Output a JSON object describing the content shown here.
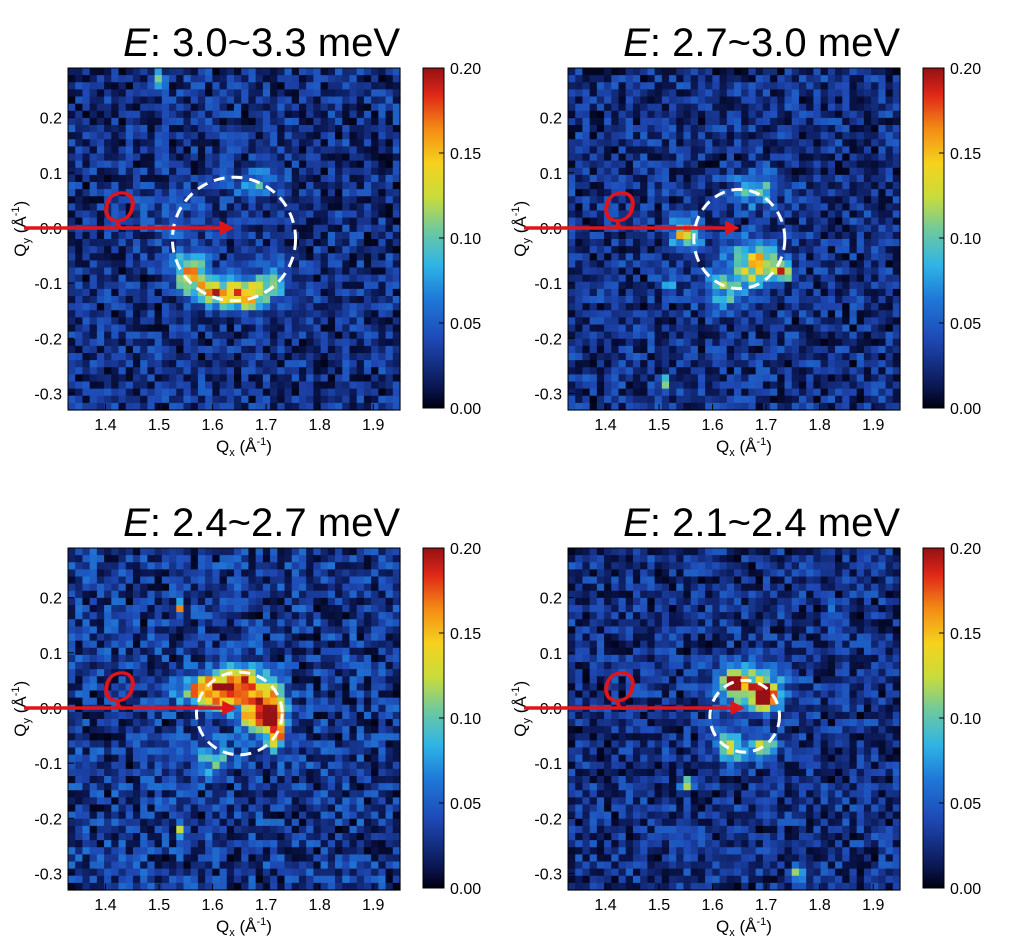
{
  "chart_data": [
    {
      "type": "heatmap",
      "title_prefix": "E",
      "title_value": ": 3.0~3.3 meV",
      "xlabel": "Qx (Å-1)",
      "ylabel": "Qy (Å-1)",
      "xlim": [
        1.33,
        1.95
      ],
      "ylim": [
        -0.33,
        0.29
      ],
      "xticks": [
        1.4,
        1.5,
        1.6,
        1.7,
        1.8,
        1.9
      ],
      "xtick_labels": [
        "1.4",
        "1.5",
        "1.6",
        "1.7",
        "1.8",
        "1.9"
      ],
      "yticks": [
        0.2,
        0.1,
        0.0,
        -0.1,
        -0.2,
        -0.3
      ],
      "ytick_labels": [
        "0.2",
        "0.1",
        "0.0",
        "-0.1",
        "-0.2",
        "-0.3"
      ],
      "colorbar": {
        "min": 0.0,
        "max": 0.2,
        "ticks": [
          "0.20",
          "0.15",
          "0.10",
          "0.05",
          "0.00"
        ]
      },
      "ring": {
        "center": [
          1.64,
          -0.02
        ],
        "radius_x": 0.115,
        "radius_y": 0.112
      },
      "q_arrow": {
        "label": "Q",
        "from_x": 1.33,
        "to_x": 1.635,
        "y": 0.0
      },
      "blobs": [
        {
          "x": 1.56,
          "y": -0.08,
          "amp": 0.1,
          "sx": 0.022,
          "sy": 0.025
        },
        {
          "x": 1.6,
          "y": -0.115,
          "amp": 0.11,
          "sx": 0.028,
          "sy": 0.018
        },
        {
          "x": 1.66,
          "y": -0.12,
          "amp": 0.12,
          "sx": 0.028,
          "sy": 0.018
        },
        {
          "x": 1.715,
          "y": -0.095,
          "amp": 0.08,
          "sx": 0.02,
          "sy": 0.02
        },
        {
          "x": 1.68,
          "y": 0.08,
          "amp": 0.05,
          "sx": 0.03,
          "sy": 0.02
        },
        {
          "x": 1.5,
          "y": 0.27,
          "amp": 0.09,
          "sx": 0.006,
          "sy": 0.012
        },
        {
          "x": 1.53,
          "y": 0.02,
          "amp": 0.02,
          "sx": 0.04,
          "sy": 0.04
        }
      ],
      "base_level": 0.03,
      "seed": 11
    },
    {
      "type": "heatmap",
      "title_prefix": "E",
      "title_value": ": 2.7~3.0 meV",
      "xlabel": "Qx (Å-1)",
      "ylabel": "Qy (Å-1)",
      "xlim": [
        1.33,
        1.95
      ],
      "ylim": [
        -0.33,
        0.29
      ],
      "xticks": [
        1.4,
        1.5,
        1.6,
        1.7,
        1.8,
        1.9
      ],
      "xtick_labels": [
        "1.4",
        "1.5",
        "1.6",
        "1.7",
        "1.8",
        "1.9"
      ],
      "yticks": [
        0.2,
        0.1,
        0.0,
        -0.1,
        -0.2,
        -0.3
      ],
      "ytick_labels": [
        "0.2",
        "0.1",
        "0.0",
        "-0.1",
        "-0.2",
        "-0.3"
      ],
      "colorbar": {
        "min": 0.0,
        "max": 0.2,
        "ticks": [
          "0.20",
          "0.15",
          "0.10",
          "0.05",
          "0.00"
        ]
      },
      "ring": {
        "center": [
          1.65,
          -0.02
        ],
        "radius_x": 0.085,
        "radius_y": 0.09
      },
      "q_arrow": {
        "label": "Q",
        "from_x": 1.33,
        "to_x": 1.645,
        "y": 0.0
      },
      "blobs": [
        {
          "x": 1.55,
          "y": -0.01,
          "amp": 0.12,
          "sx": 0.018,
          "sy": 0.018
        },
        {
          "x": 1.68,
          "y": -0.06,
          "amp": 0.12,
          "sx": 0.03,
          "sy": 0.025
        },
        {
          "x": 1.73,
          "y": -0.08,
          "amp": 0.14,
          "sx": 0.01,
          "sy": 0.01
        },
        {
          "x": 1.63,
          "y": -0.11,
          "amp": 0.07,
          "sx": 0.03,
          "sy": 0.025
        },
        {
          "x": 1.68,
          "y": 0.07,
          "amp": 0.07,
          "sx": 0.03,
          "sy": 0.02
        },
        {
          "x": 1.51,
          "y": -0.28,
          "amp": 0.1,
          "sx": 0.007,
          "sy": 0.007
        },
        {
          "x": 1.52,
          "y": -0.11,
          "amp": 0.08,
          "sx": 0.006,
          "sy": 0.007
        }
      ],
      "base_level": 0.03,
      "seed": 23
    },
    {
      "type": "heatmap",
      "title_prefix": "E",
      "title_value": ": 2.4~2.7 meV",
      "xlabel": "Qx (Å-1)",
      "ylabel": "Qy (Å-1)",
      "xlim": [
        1.33,
        1.95
      ],
      "ylim": [
        -0.33,
        0.29
      ],
      "xticks": [
        1.4,
        1.5,
        1.6,
        1.7,
        1.8,
        1.9
      ],
      "xtick_labels": [
        "1.4",
        "1.5",
        "1.6",
        "1.7",
        "1.8",
        "1.9"
      ],
      "yticks": [
        0.2,
        0.1,
        0.0,
        -0.1,
        -0.2,
        -0.3
      ],
      "ytick_labels": [
        "0.2",
        "0.1",
        "0.0",
        "-0.1",
        "-0.2",
        "-0.3"
      ],
      "colorbar": {
        "min": 0.0,
        "max": 0.2,
        "ticks": [
          "0.20",
          "0.15",
          "0.10",
          "0.05",
          "0.00"
        ]
      },
      "ring": {
        "center": [
          1.65,
          -0.01
        ],
        "radius_x": 0.08,
        "radius_y": 0.075
      },
      "q_arrow": {
        "label": "Q",
        "from_x": 1.33,
        "to_x": 1.64,
        "y": 0.0
      },
      "blobs": [
        {
          "x": 1.6,
          "y": 0.03,
          "amp": 0.16,
          "sx": 0.035,
          "sy": 0.02
        },
        {
          "x": 1.69,
          "y": 0.0,
          "amp": 0.17,
          "sx": 0.025,
          "sy": 0.03
        },
        {
          "x": 1.72,
          "y": -0.03,
          "amp": 0.14,
          "sx": 0.012,
          "sy": 0.03
        },
        {
          "x": 1.65,
          "y": 0.05,
          "amp": 0.1,
          "sx": 0.03,
          "sy": 0.02
        },
        {
          "x": 1.6,
          "y": -0.09,
          "amp": 0.06,
          "sx": 0.025,
          "sy": 0.02
        },
        {
          "x": 1.54,
          "y": 0.18,
          "amp": 0.1,
          "sx": 0.006,
          "sy": 0.01
        },
        {
          "x": 1.54,
          "y": -0.22,
          "amp": 0.07,
          "sx": 0.006,
          "sy": 0.008
        }
      ],
      "base_level": 0.035,
      "seed": 37
    },
    {
      "type": "heatmap",
      "title_prefix": "E",
      "title_value": ": 2.1~2.4 meV",
      "xlabel": "Qx (Å-1)",
      "ylabel": "Qy (Å-1)",
      "xlim": [
        1.33,
        1.95
      ],
      "ylim": [
        -0.33,
        0.29
      ],
      "xticks": [
        1.4,
        1.5,
        1.6,
        1.7,
        1.8,
        1.9
      ],
      "xtick_labels": [
        "1.4",
        "1.5",
        "1.6",
        "1.7",
        "1.8",
        "1.9"
      ],
      "yticks": [
        0.2,
        0.1,
        0.0,
        -0.1,
        -0.2,
        -0.3
      ],
      "ytick_labels": [
        "0.2",
        "0.1",
        "0.0",
        "-0.1",
        "-0.2",
        "-0.3"
      ],
      "colorbar": {
        "min": 0.0,
        "max": 0.2,
        "ticks": [
          "0.20",
          "0.15",
          "0.10",
          "0.05",
          "0.00"
        ]
      },
      "ring": {
        "center": [
          1.66,
          -0.015
        ],
        "radius_x": 0.065,
        "radius_y": 0.065
      },
      "q_arrow": {
        "label": "Q",
        "from_x": 1.33,
        "to_x": 1.655,
        "y": 0.0
      },
      "blobs": [
        {
          "x": 1.7,
          "y": 0.02,
          "amp": 0.17,
          "sx": 0.015,
          "sy": 0.015
        },
        {
          "x": 1.64,
          "y": 0.045,
          "amp": 0.15,
          "sx": 0.015,
          "sy": 0.01
        },
        {
          "x": 1.67,
          "y": 0.04,
          "amp": 0.1,
          "sx": 0.04,
          "sy": 0.03
        },
        {
          "x": 1.63,
          "y": -0.07,
          "amp": 0.1,
          "sx": 0.015,
          "sy": 0.02
        },
        {
          "x": 1.69,
          "y": -0.07,
          "amp": 0.08,
          "sx": 0.025,
          "sy": 0.015
        },
        {
          "x": 1.55,
          "y": -0.14,
          "amp": 0.16,
          "sx": 0.006,
          "sy": 0.007
        },
        {
          "x": 1.76,
          "y": -0.3,
          "amp": 0.1,
          "sx": 0.01,
          "sy": 0.008
        },
        {
          "x": 1.82,
          "y": 0.15,
          "amp": 0.05,
          "sx": 0.005,
          "sy": 0.02
        }
      ],
      "base_level": 0.03,
      "seed": 53
    }
  ]
}
